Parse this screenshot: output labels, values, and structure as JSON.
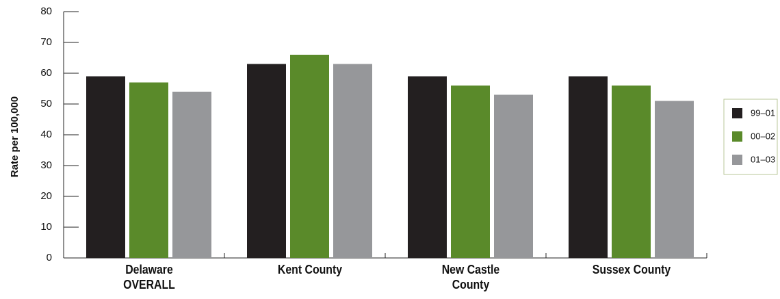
{
  "chart_data": {
    "type": "bar",
    "y_label": "Rate per 100,000",
    "categories": [
      "Delaware OVERALL",
      "Kent County",
      "New Castle County",
      "Sussex County"
    ],
    "series": [
      {
        "name": "99–01",
        "color": "#231f20",
        "values": [
          59,
          63,
          59,
          59
        ]
      },
      {
        "name": "00–02",
        "color": "#5a8a2a",
        "values": [
          57,
          66,
          56,
          56
        ]
      },
      {
        "name": "01–03",
        "color": "#96979a",
        "values": [
          54,
          63,
          53,
          51
        ]
      }
    ],
    "ylim": [
      0,
      80
    ],
    "yticks": [
      0,
      10,
      20,
      30,
      40,
      50,
      60,
      70,
      80
    ],
    "legend": "right"
  }
}
